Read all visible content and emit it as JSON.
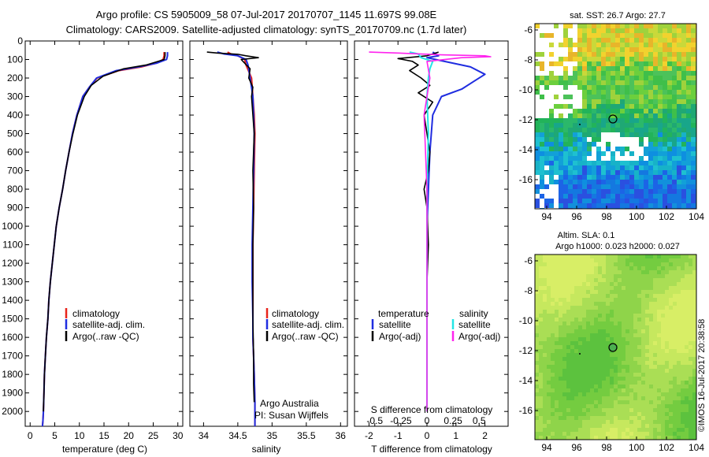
{
  "header": {
    "line1": "Argo profile: CS 5905009_58 07-Jul-2017 20170707_1145 11.697S 99.08E",
    "line2": "Climatology: CARS2009. Satellite-adjusted climatology: synTS_20170709.nc (1.7d later)"
  },
  "colors": {
    "climatology": "#e8241b",
    "satellite": "#1f2de0",
    "argo": "#000000",
    "argo_s": "#ff22ee",
    "satellite_s": "#22e6e6"
  },
  "chart_data": [
    {
      "type": "line",
      "panel": "temperature",
      "xlabel": "temperature (deg C)",
      "ylim": [
        2080,
        0
      ],
      "xlim": [
        -1,
        31
      ],
      "xticks": [
        "0",
        "5",
        "10",
        "15",
        "20",
        "25",
        "30"
      ],
      "xtick_values": [
        0,
        5,
        10,
        15,
        20,
        25,
        30
      ],
      "yticks": [
        "0",
        "100",
        "200",
        "300",
        "400",
        "500",
        "600",
        "700",
        "800",
        "900",
        "1000",
        "1100",
        "1200",
        "1300",
        "1400",
        "1500",
        "1600",
        "1700",
        "1800",
        "1900",
        "2000"
      ],
      "ytick_values": [
        0,
        100,
        200,
        300,
        400,
        500,
        600,
        700,
        800,
        900,
        1000,
        1100,
        1200,
        1300,
        1400,
        1500,
        1600,
        1700,
        1800,
        1900,
        2000
      ],
      "legend": [
        "climatology",
        "satellite-adj. clim.",
        "Argo(..raw -QC)"
      ],
      "series": [
        {
          "key": "climatology",
          "x": [
            27.2,
            27.2,
            27.0,
            25.6,
            22.6,
            18.0,
            13.6,
            12.0,
            10.7,
            9.5,
            8.6,
            7.9,
            7.2,
            6.6,
            5.9,
            5.3,
            4.9,
            4.5,
            4.1,
            3.8,
            3.6,
            3.3,
            3.1,
            2.9,
            2.8,
            2.7,
            2.6,
            2.5
          ],
          "y": [
            60,
            80,
            100,
            120,
            140,
            160,
            200,
            250,
            300,
            400,
            500,
            600,
            700,
            800,
            900,
            1000,
            1100,
            1200,
            1300,
            1400,
            1500,
            1600,
            1700,
            1800,
            1900,
            2000,
            2050,
            2080
          ]
        },
        {
          "key": "satellite",
          "x": [
            27.9,
            27.9,
            27.7,
            25.7,
            22.0,
            17.5,
            13.5,
            12.0,
            10.7,
            9.5,
            8.6,
            7.9,
            7.2,
            6.6,
            5.9,
            5.3,
            4.9,
            4.5,
            4.1,
            3.8,
            3.6,
            3.3,
            3.1,
            2.9,
            2.8,
            2.7,
            2.6,
            2.5
          ],
          "y": [
            60,
            80,
            100,
            120,
            140,
            160,
            200,
            250,
            300,
            400,
            500,
            600,
            700,
            800,
            900,
            1000,
            1100,
            1200,
            1300,
            1400,
            1500,
            1600,
            1700,
            1800,
            1900,
            2000,
            2050,
            2080
          ]
        },
        {
          "key": "argo",
          "x": [
            27.4,
            27.4,
            27.2,
            26.0,
            23.5,
            19.0,
            14.8,
            12.4,
            11.0,
            9.6,
            8.7,
            7.9,
            7.2,
            6.6,
            5.9,
            5.3,
            4.9,
            4.5,
            4.1,
            3.8,
            3.6,
            3.3,
            3.1,
            2.9,
            2.8,
            2.7
          ],
          "y": [
            60,
            80,
            100,
            110,
            130,
            150,
            190,
            240,
            300,
            400,
            500,
            600,
            700,
            800,
            900,
            1000,
            1100,
            1200,
            1300,
            1400,
            1500,
            1600,
            1700,
            1800,
            1900,
            2000
          ]
        }
      ]
    },
    {
      "type": "line",
      "panel": "salinity",
      "xlabel": "salinity",
      "ylim": [
        2080,
        0
      ],
      "xlim": [
        33.8,
        36.1
      ],
      "xticks": [
        "34",
        "34.5",
        "35",
        "35.5",
        "36"
      ],
      "xtick_values": [
        34,
        34.5,
        35,
        35.5,
        36
      ],
      "legend": [
        "climatology",
        "satellite-adj. clim.",
        "Argo(..raw -QC)"
      ],
      "annotation": [
        "Argo Australia",
        "PI: Susan Wijffels"
      ],
      "series": [
        {
          "key": "climatology",
          "x": [
            34.35,
            34.4,
            34.5,
            34.6,
            34.62,
            34.7,
            34.72,
            34.74,
            34.75,
            34.74,
            34.73,
            34.72,
            34.72,
            34.72,
            34.72,
            34.73,
            34.74,
            34.75,
            34.75
          ],
          "y": [
            60,
            70,
            80,
            100,
            130,
            200,
            300,
            400,
            500,
            700,
            900,
            1100,
            1300,
            1500,
            1600,
            1700,
            1800,
            1950,
            2080
          ]
        },
        {
          "key": "satellite",
          "x": [
            34.2,
            34.3,
            34.5,
            34.62,
            34.65,
            34.68,
            34.72,
            34.73,
            34.74,
            34.73,
            34.72,
            34.71,
            34.71,
            34.72,
            34.72,
            34.73,
            34.74,
            34.75,
            34.75
          ],
          "y": [
            60,
            70,
            80,
            100,
            130,
            200,
            300,
            400,
            500,
            700,
            900,
            1100,
            1300,
            1500,
            1600,
            1700,
            1800,
            1950,
            2080
          ]
        },
        {
          "key": "argo",
          "x": [
            34.05,
            34.2,
            34.5,
            34.62,
            34.8,
            34.55,
            34.6,
            34.68,
            34.66,
            34.72,
            34.7,
            34.72,
            34.74,
            34.72,
            34.73,
            34.72,
            34.72,
            34.72,
            34.73,
            34.73,
            34.74
          ],
          "y": [
            60,
            65,
            72,
            80,
            90,
            100,
            120,
            150,
            200,
            250,
            300,
            400,
            500,
            700,
            900,
            1100,
            1300,
            1500,
            1700,
            1850,
            1950
          ]
        }
      ]
    },
    {
      "type": "line",
      "panel": "difference",
      "xlabel": "T difference from climatology",
      "xlabel_top": "S difference from climatology",
      "ylim": [
        2080,
        0
      ],
      "xlim": [
        -2.5,
        2.8
      ],
      "xticks": [
        "-2",
        "-1",
        "0",
        "1",
        "2"
      ],
      "xtick_values": [
        -2,
        -1,
        0,
        1,
        2
      ],
      "sticks": [
        "-0.5",
        "-0.25",
        "0",
        "0.25",
        "0.5"
      ],
      "stick_positions_T": [
        -1.8,
        -0.9,
        0,
        0.9,
        1.8
      ],
      "legend_titles": [
        "temperature",
        "salinity"
      ],
      "legend": [
        "satellite",
        "Argo(-adj)",
        "satellite",
        "Argo(-adj)"
      ],
      "series": [
        {
          "key": "satellite",
          "x": [
            0.2,
            0.4,
            0.0,
            0.3,
            1.5,
            2.0,
            1.6,
            1.2,
            0.5,
            0.2,
            0.1,
            0.05,
            0.0,
            0.0,
            0.0,
            0.0
          ],
          "y": [
            60,
            80,
            90,
            100,
            140,
            180,
            220,
            260,
            300,
            400,
            600,
            800,
            1000,
            1200,
            1500,
            2000
          ]
        },
        {
          "key": "argo",
          "x": [
            0.4,
            0.0,
            -1.0,
            -0.5,
            -0.3,
            -0.6,
            -0.2,
            0.1,
            -0.3,
            0.2,
            -0.1,
            0.0,
            0.1,
            0.05,
            -0.1,
            0.0,
            0.05,
            0.0,
            0.0,
            0.0
          ],
          "y": [
            60,
            80,
            95,
            110,
            130,
            160,
            200,
            240,
            280,
            330,
            400,
            500,
            600,
            700,
            800,
            900,
            1100,
            1300,
            1600,
            2000
          ]
        },
        {
          "key": "satellite_s",
          "x": [
            -0.6,
            -0.3,
            -0.2,
            0.2,
            0.1,
            0.05,
            0.0,
            0.05,
            0.0,
            0.0,
            0.0,
            0.0
          ],
          "y": [
            60,
            70,
            90,
            110,
            150,
            200,
            300,
            500,
            800,
            1200,
            1600,
            2000
          ]
        },
        {
          "key": "argo_s",
          "x": [
            -2.0,
            -1.0,
            0.5,
            2.0,
            2.2,
            1.2,
            0.0,
            0.1,
            -0.1,
            0.0,
            0.0,
            0.0
          ],
          "y": [
            60,
            65,
            75,
            80,
            85,
            90,
            110,
            200,
            400,
            800,
            1400,
            2000
          ]
        }
      ]
    }
  ],
  "maps": [
    {
      "title": "sat. SST: 26.7  Argo: 27.7",
      "xticks": [
        "94",
        "96",
        "98",
        "100",
        "102",
        "104"
      ],
      "yticks": [
        "-6",
        "-8",
        "-10",
        "-12",
        "-14",
        "-16"
      ]
    },
    {
      "title_line1": "Altim. SLA: 0.1",
      "title_line2": "Argo h1000: 0.023 h2000: 0.027",
      "xticks": [
        "94",
        "96",
        "98",
        "100",
        "102",
        "104"
      ],
      "yticks": [
        "-6",
        "-8",
        "-10",
        "-12",
        "-14",
        "-16"
      ]
    }
  ],
  "footer": {
    "stamp": "©IMOS 16-Jul-2017 20:38:58"
  }
}
